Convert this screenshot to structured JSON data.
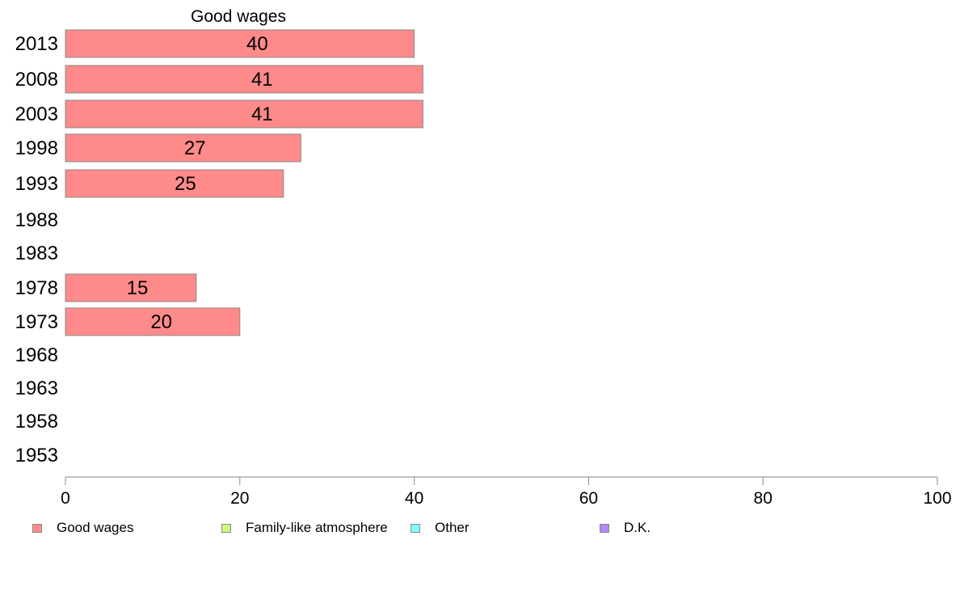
{
  "chart_data": {
    "type": "bar",
    "orientation": "horizontal",
    "title": "Good wages",
    "categories": [
      "2013",
      "2008",
      "2003",
      "1998",
      "1993",
      "1988",
      "1983",
      "1978",
      "1973",
      "1968",
      "1963",
      "1958",
      "1953"
    ],
    "series": [
      {
        "name": "Good wages",
        "color": "#ff8a8a",
        "values": [
          40,
          41,
          41,
          27,
          25,
          null,
          null,
          15,
          20,
          null,
          null,
          null,
          null
        ],
        "labels": [
          "40",
          "41",
          "41",
          "27",
          "25",
          "",
          "",
          "15",
          "20",
          "",
          "",
          "",
          ""
        ]
      }
    ],
    "xlim": [
      0,
      100
    ],
    "xticks": [
      "0",
      "20",
      "40",
      "60",
      "80",
      "100"
    ],
    "grid": false,
    "legend_position": "bottom",
    "legend": [
      {
        "label": "Good wages",
        "color": "#ff8a8a"
      },
      {
        "label": "Family-like atmosphere",
        "color": "#c8ff80"
      },
      {
        "label": "Other",
        "color": "#80ffff"
      },
      {
        "label": "D.K.",
        "color": "#b388ff"
      }
    ]
  }
}
